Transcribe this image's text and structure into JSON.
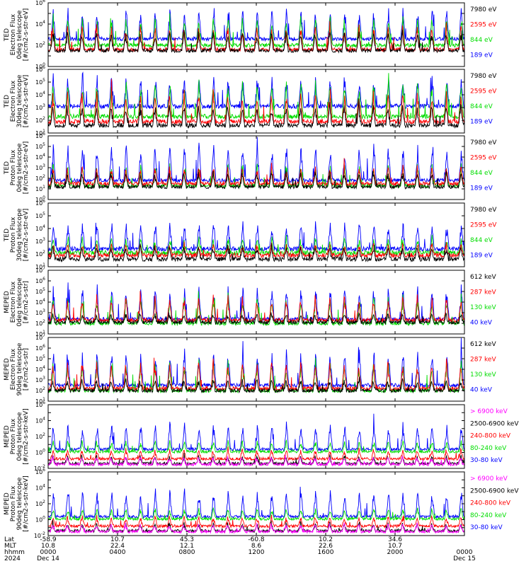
{
  "chart_data": [
    {
      "type": "line",
      "ylabel": [
        "TED",
        "Electron Flux",
        "0deg telescope",
        "[#/cm2-s-str-eV]"
      ],
      "ylog_range": [
        0,
        6
      ],
      "ytick_exps": [
        0,
        2,
        4,
        6
      ],
      "series": [
        {
          "name": "7980 eV",
          "color": "#000000",
          "base": 1.5,
          "spike": 1.8
        },
        {
          "name": "2595 eV",
          "color": "#ff0000",
          "base": 1.6,
          "spike": 2.3
        },
        {
          "name": "844 eV",
          "color": "#00dd00",
          "base": 2.0,
          "spike": 2.7
        },
        {
          "name": "189 eV",
          "color": "#0000ff",
          "base": 2.6,
          "spike": 2.8
        }
      ]
    },
    {
      "type": "line",
      "ylabel": [
        "TED",
        "Electron Flux",
        "30deg telescope",
        "[#/cm2-s-str-eV]"
      ],
      "ylog_range": [
        1,
        6
      ],
      "ytick_exps": [
        1,
        2,
        3,
        4,
        5,
        6
      ],
      "series": [
        {
          "name": "7980 eV",
          "color": "#000000",
          "base": 1.6,
          "spike": 1.6
        },
        {
          "name": "2595 eV",
          "color": "#ff0000",
          "base": 1.9,
          "spike": 2.3
        },
        {
          "name": "844 eV",
          "color": "#00dd00",
          "base": 2.3,
          "spike": 2.8
        },
        {
          "name": "189 eV",
          "color": "#0000ff",
          "base": 3.1,
          "spike": 2.4
        }
      ]
    },
    {
      "type": "line",
      "ylabel": [
        "TED",
        "Proton Flux",
        "0deg telescope",
        "[#/cm2-s-str-eV]"
      ],
      "ylog_range": [
        0,
        6
      ],
      "ytick_exps": [
        0,
        1,
        2,
        3,
        4,
        5,
        6
      ],
      "series": [
        {
          "name": "7980 eV",
          "color": "#000000",
          "base": 1.2,
          "spike": 1.4
        },
        {
          "name": "2595 eV",
          "color": "#ff0000",
          "base": 1.5,
          "spike": 1.7
        },
        {
          "name": "844 eV",
          "color": "#00dd00",
          "base": 1.3,
          "spike": 2.0
        },
        {
          "name": "189 eV",
          "color": "#0000ff",
          "base": 1.8,
          "spike": 3.4
        }
      ]
    },
    {
      "type": "line",
      "ylabel": [
        "TED",
        "Proton Flux",
        "30deg telescope",
        "[#/cm2-s-str-eV]"
      ],
      "ylog_range": [
        1,
        6
      ],
      "ytick_exps": [
        1,
        2,
        3,
        4,
        5,
        6
      ],
      "series": [
        {
          "name": "7980 eV",
          "color": "#000000",
          "base": 1.6,
          "spike": 1.0
        },
        {
          "name": "2595 eV",
          "color": "#ff0000",
          "base": 1.9,
          "spike": 0.9
        },
        {
          "name": "844 eV",
          "color": "#00dd00",
          "base": 2.1,
          "spike": 1.2
        },
        {
          "name": "189 eV",
          "color": "#0000ff",
          "base": 2.4,
          "spike": 2.1
        }
      ]
    },
    {
      "type": "line",
      "ylabel": [
        "MEPED",
        "Electron Flux",
        "0deg telescope",
        "[#/cm2-s-str]"
      ],
      "ylog_range": [
        1,
        7
      ],
      "ytick_exps": [
        1,
        2,
        3,
        4,
        5,
        6,
        7
      ],
      "series": [
        {
          "name": "612 keV",
          "color": "#000000",
          "base": 2.1,
          "spike": 0.8
        },
        {
          "name": "287 keV",
          "color": "#ff0000",
          "base": 2.3,
          "spike": 2.3
        },
        {
          "name": "130 keV",
          "color": "#00dd00",
          "base": 2.0,
          "spike": 2.6
        },
        {
          "name": "40 keV",
          "color": "#0000ff",
          "base": 2.4,
          "spike": 3.2
        }
      ]
    },
    {
      "type": "line",
      "ylabel": [
        "MEPED",
        "Electron Flux",
        "90deg telescope",
        "[#/cm2-s-str]"
      ],
      "ylog_range": [
        1,
        7
      ],
      "ytick_exps": [
        1,
        2,
        3,
        4,
        5,
        6,
        7
      ],
      "series": [
        {
          "name": "612 keV",
          "color": "#000000",
          "base": 2.0,
          "spike": 1.0
        },
        {
          "name": "287 keV",
          "color": "#ff0000",
          "base": 2.2,
          "spike": 2.6
        },
        {
          "name": "130 keV",
          "color": "#00dd00",
          "base": 2.0,
          "spike": 2.8
        },
        {
          "name": "40 keV",
          "color": "#0000ff",
          "base": 2.5,
          "spike": 3.3
        }
      ]
    },
    {
      "type": "line",
      "ylabel": [
        "MEPED",
        "Proton Flux",
        "0deg telescope",
        "[#/cm2-s-str-keV]"
      ],
      "ylog_range": [
        -2,
        6
      ],
      "ytick_exps": [
        -2,
        0,
        2,
        4,
        6
      ],
      "series": [
        {
          "name": "> 6900 keV",
          "color": "#ff00ff",
          "base": -1.5,
          "spike": 1.0
        },
        {
          "name": "2500-6900 keV",
          "color": "#000000",
          "base": -1.4,
          "spike": 1.0
        },
        {
          "name": "240-800 keV",
          "color": "#ff0000",
          "base": -0.8,
          "spike": 1.2
        },
        {
          "name": "80-240 keV",
          "color": "#00dd00",
          "base": 0.1,
          "spike": 1.4
        },
        {
          "name": "30-80 keV",
          "color": "#0000ff",
          "base": 0.4,
          "spike": 3.3
        }
      ]
    },
    {
      "type": "line",
      "ylabel": [
        "MEPED",
        "Proton Flux",
        "90deg telescope",
        "[#/cm2-s-str-keV]"
      ],
      "ylog_range": [
        -2,
        6
      ],
      "ytick_exps": [
        -2,
        0,
        2,
        4,
        6
      ],
      "series": [
        {
          "name": "> 6900 keV",
          "color": "#ff00ff",
          "base": -1.5,
          "spike": 1.0
        },
        {
          "name": "2500-6900 keV",
          "color": "#000000",
          "base": -1.4,
          "spike": 1.0
        },
        {
          "name": "240-800 keV",
          "color": "#ff0000",
          "base": -0.8,
          "spike": 1.2
        },
        {
          "name": "80-240 keV",
          "color": "#00dd00",
          "base": 0.1,
          "spike": 1.4
        },
        {
          "name": "30-80 keV",
          "color": "#0000ff",
          "base": 0.4,
          "spike": 3.3
        }
      ]
    }
  ],
  "x_axis": {
    "row_labels": [
      "Lat",
      "MLT",
      "hhmm",
      "2024"
    ],
    "ticks": [
      {
        "lat": "-58.9",
        "mlt": "10.8",
        "hhmm": "0000",
        "date": "Dec 14",
        "hours": 0
      },
      {
        "lat": "10.7",
        "mlt": "22.4",
        "hhmm": "0400",
        "date": "",
        "hours": 4
      },
      {
        "lat": "45.3",
        "mlt": "12.1",
        "hhmm": "0800",
        "date": "",
        "hours": 8
      },
      {
        "lat": "-60.8",
        "mlt": "8.6",
        "hhmm": "1200",
        "date": "",
        "hours": 12
      },
      {
        "lat": "10.2",
        "mlt": "22.6",
        "hhmm": "1600",
        "date": "",
        "hours": 16
      },
      {
        "lat": "34.6",
        "mlt": "10.7",
        "hhmm": "2000",
        "date": "",
        "hours": 20
      },
      {
        "lat": "",
        "mlt": "",
        "hhmm": "0000",
        "date": "Dec 15",
        "hours": 24
      }
    ],
    "range_hours": [
      0,
      24
    ]
  },
  "styles": {
    "axis_color": "#000000",
    "background": "#ffffff"
  }
}
